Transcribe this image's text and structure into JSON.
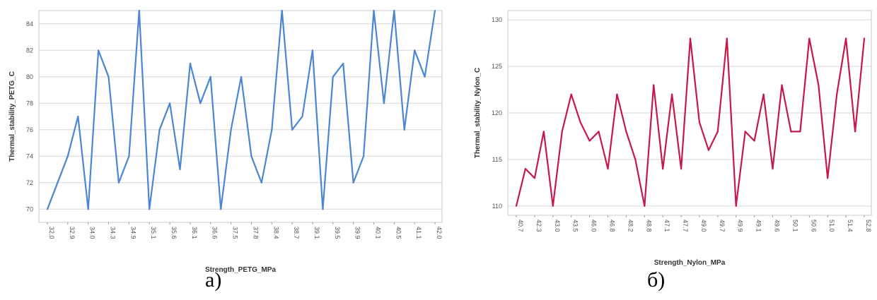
{
  "chart_data": [
    {
      "type": "line",
      "xlabel": "Strength_PETG_MPa",
      "ylabel": "Thermal_stability_PETG_C",
      "ylim": [
        69,
        85
      ],
      "yticks": [
        70,
        72,
        74,
        76,
        78,
        80,
        82,
        84
      ],
      "color": "#4a86d4",
      "tick_labels": [
        "32.0",
        "32.9",
        "34.0",
        "34.3",
        "34.9",
        "35.1",
        "35.6",
        "36.1",
        "36.6",
        "37.5",
        "37.8",
        "38.4",
        "38.7",
        "39.1",
        "39.5",
        "39.9",
        "40.1",
        "40.5",
        "41.1",
        "42.0"
      ],
      "values": [
        70,
        72,
        74,
        77,
        70,
        82,
        80,
        72,
        74,
        85,
        70,
        76,
        78,
        73,
        81,
        78,
        80,
        70,
        76,
        80,
        74,
        72,
        76,
        85,
        76,
        77,
        82,
        70,
        80,
        81,
        72,
        74,
        85,
        78,
        85,
        76,
        82,
        80,
        85
      ]
    },
    {
      "type": "line",
      "xlabel": "Strength_Nylon_MPa",
      "ylabel": "Thermal_stability_Nylon_C",
      "ylim": [
        109,
        131
      ],
      "yticks": [
        110,
        115,
        120,
        125,
        130
      ],
      "color": "#c8174a",
      "tick_labels": [
        "40.7",
        "42.3",
        "43.0",
        "43.5",
        "46.0",
        "46.8",
        "48.2",
        "48.8",
        "47.1",
        "47.7",
        "49.0",
        "49.7",
        "49.9",
        "49.1",
        "49.6",
        "50.1",
        "50.6",
        "51.0",
        "51.4",
        "52.8"
      ],
      "values": [
        110,
        114,
        113,
        118,
        110,
        118,
        122,
        119,
        117,
        118,
        114,
        122,
        118,
        115,
        110,
        123,
        114,
        122,
        114,
        128,
        119,
        116,
        118,
        128,
        110,
        118,
        117,
        122,
        114,
        123,
        118,
        118,
        128,
        123,
        113,
        122,
        128,
        118,
        128
      ]
    }
  ],
  "labels": {
    "left": "а)",
    "right": "б)"
  }
}
